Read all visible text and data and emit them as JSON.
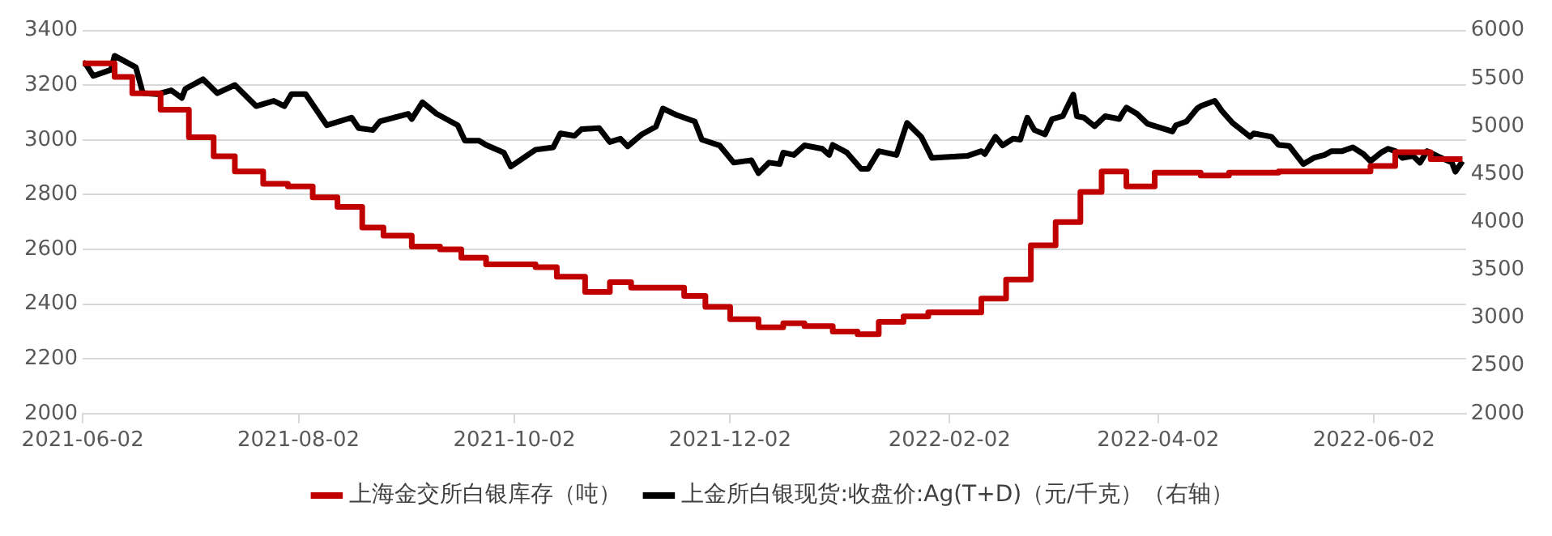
{
  "chart_data": {
    "type": "line",
    "xlim": [
      "2021-06-02",
      "2022-06-28"
    ],
    "xticks": [
      "2021-06-02",
      "2021-08-02",
      "2021-10-02",
      "2021-12-02",
      "2022-02-02",
      "2022-04-02",
      "2022-06-02"
    ],
    "ylim": [
      2000,
      3400
    ],
    "yticks": [
      2000,
      2200,
      2400,
      2600,
      2800,
      3000,
      3200,
      3400
    ],
    "y2lim": [
      2000,
      6000
    ],
    "y2ticks": [
      2000,
      2500,
      3000,
      3500,
      4000,
      4500,
      5000,
      5500,
      6000
    ],
    "grid": "y",
    "legend": "bottom",
    "marker": "none",
    "line_style": "solid",
    "series": [
      {
        "name": "上海金交所白银库存（吨）",
        "type": "step",
        "color": "#c00000",
        "x": [
          "2021-06-02",
          "2021-06-11",
          "2021-06-16",
          "2021-06-24",
          "2021-07-02",
          "2021-07-09",
          "2021-07-15",
          "2021-07-23",
          "2021-07-30",
          "2021-08-06",
          "2021-08-13",
          "2021-08-20",
          "2021-08-26",
          "2021-09-03",
          "2021-09-11",
          "2021-09-17",
          "2021-09-24",
          "2021-10-08",
          "2021-10-14",
          "2021-10-22",
          "2021-10-29",
          "2021-11-04",
          "2021-11-19",
          "2021-11-25",
          "2021-12-02",
          "2021-12-10",
          "2021-12-17",
          "2021-12-23",
          "2021-12-31",
          "2022-01-07",
          "2022-01-13",
          "2022-01-20",
          "2022-01-27",
          "2022-02-11",
          "2022-02-18",
          "2022-02-25",
          "2022-03-04",
          "2022-03-11",
          "2022-03-17",
          "2022-03-24",
          "2022-04-01",
          "2022-04-14",
          "2022-04-22",
          "2022-05-06",
          "2022-06-01",
          "2022-06-08",
          "2022-06-18",
          "2022-06-27"
        ],
        "values": [
          3280,
          3230,
          3170,
          3110,
          3010,
          2940,
          2885,
          2840,
          2830,
          2790,
          2755,
          2680,
          2650,
          2610,
          2600,
          2570,
          2545,
          2535,
          2500,
          2445,
          2480,
          2460,
          2430,
          2390,
          2345,
          2315,
          2330,
          2320,
          2300,
          2290,
          2335,
          2355,
          2370,
          2420,
          2490,
          2615,
          2700,
          2810,
          2885,
          2830,
          2880,
          2870,
          2880,
          2885,
          2905,
          2955,
          2930,
          2930
        ]
      },
      {
        "name": "上金所白银现货:收盘价:Ag(T+D)（元/千克）（右轴）",
        "type": "line",
        "axis": "y2",
        "color": "#000000",
        "x": [
          "2021-06-02",
          "2021-06-03",
          "2021-06-05",
          "2021-06-10",
          "2021-06-11",
          "2021-06-17",
          "2021-06-19",
          "2021-06-23",
          "2021-06-27",
          "2021-06-30",
          "2021-07-01",
          "2021-07-06",
          "2021-07-10",
          "2021-07-15",
          "2021-07-21",
          "2021-07-26",
          "2021-07-29",
          "2021-07-31",
          "2021-08-04",
          "2021-08-10",
          "2021-08-17",
          "2021-08-19",
          "2021-08-23",
          "2021-08-25",
          "2021-09-02",
          "2021-09-03",
          "2021-09-06",
          "2021-09-10",
          "2021-09-16",
          "2021-09-18",
          "2021-09-22",
          "2021-09-24",
          "2021-09-29",
          "2021-10-01",
          "2021-10-08",
          "2021-10-13",
          "2021-10-15",
          "2021-10-19",
          "2021-10-21",
          "2021-10-26",
          "2021-10-29",
          "2021-11-01",
          "2021-11-03",
          "2021-11-07",
          "2021-11-11",
          "2021-11-13",
          "2021-11-17",
          "2021-11-22",
          "2021-11-24",
          "2021-11-29",
          "2021-12-03",
          "2021-12-08",
          "2021-12-10",
          "2021-12-13",
          "2021-12-16",
          "2021-12-17",
          "2021-12-20",
          "2021-12-23",
          "2021-12-28",
          "2021-12-30",
          "2021-12-31",
          "2022-01-04",
          "2022-01-08",
          "2022-01-10",
          "2022-01-13",
          "2022-01-18",
          "2022-01-21",
          "2022-01-25",
          "2022-01-28",
          "2022-02-07",
          "2022-02-11",
          "2022-02-12",
          "2022-02-15",
          "2022-02-17",
          "2022-02-20",
          "2022-02-22",
          "2022-02-23",
          "2022-02-24",
          "2022-02-26",
          "2022-03-01",
          "2022-03-03",
          "2022-03-06",
          "2022-03-09",
          "2022-03-10",
          "2022-03-12",
          "2022-03-15",
          "2022-03-18",
          "2022-03-22",
          "2022-03-23",
          "2022-03-24",
          "2022-03-27",
          "2022-03-30",
          "2022-04-06",
          "2022-04-07",
          "2022-04-10",
          "2022-04-13",
          "2022-04-14",
          "2022-04-18",
          "2022-04-20",
          "2022-04-23",
          "2022-04-28",
          "2022-04-29",
          "2022-05-04",
          "2022-05-06",
          "2022-05-09",
          "2022-05-13",
          "2022-05-16",
          "2022-05-19",
          "2022-05-21",
          "2022-05-24",
          "2022-05-27",
          "2022-05-30",
          "2022-06-01",
          "2022-06-04",
          "2022-06-06",
          "2022-06-08",
          "2022-06-10",
          "2022-06-13",
          "2022-06-15",
          "2022-06-17",
          "2022-06-21",
          "2022-06-24",
          "2022-06-25",
          "2022-06-27"
        ],
        "values": [
          5670,
          5640,
          5525,
          5590,
          5735,
          5615,
          5345,
          5335,
          5375,
          5295,
          5390,
          5490,
          5345,
          5430,
          5210,
          5265,
          5210,
          5335,
          5335,
          5010,
          5090,
          4980,
          4960,
          5050,
          5130,
          5075,
          5250,
          5130,
          5010,
          4850,
          4850,
          4805,
          4725,
          4580,
          4755,
          4780,
          4925,
          4900,
          4970,
          4980,
          4835,
          4870,
          4790,
          4915,
          4995,
          5185,
          5115,
          5050,
          4860,
          4800,
          4620,
          4645,
          4510,
          4620,
          4605,
          4725,
          4700,
          4800,
          4765,
          4700,
          4805,
          4725,
          4555,
          4555,
          4740,
          4700,
          5035,
          4890,
          4670,
          4690,
          4740,
          4710,
          4890,
          4800,
          4870,
          4860,
          4980,
          5090,
          4960,
          4915,
          5075,
          5105,
          5330,
          5105,
          5090,
          5000,
          5105,
          5075,
          5140,
          5195,
          5130,
          5025,
          4945,
          5010,
          5050,
          5185,
          5210,
          5265,
          5160,
          5035,
          4890,
          4925,
          4890,
          4805,
          4795,
          4605,
          4670,
          4700,
          4740,
          4740,
          4780,
          4710,
          4635,
          4725,
          4765,
          4740,
          4670,
          4690,
          4620,
          4740,
          4670,
          4620,
          4525,
          4635
        ]
      }
    ]
  }
}
